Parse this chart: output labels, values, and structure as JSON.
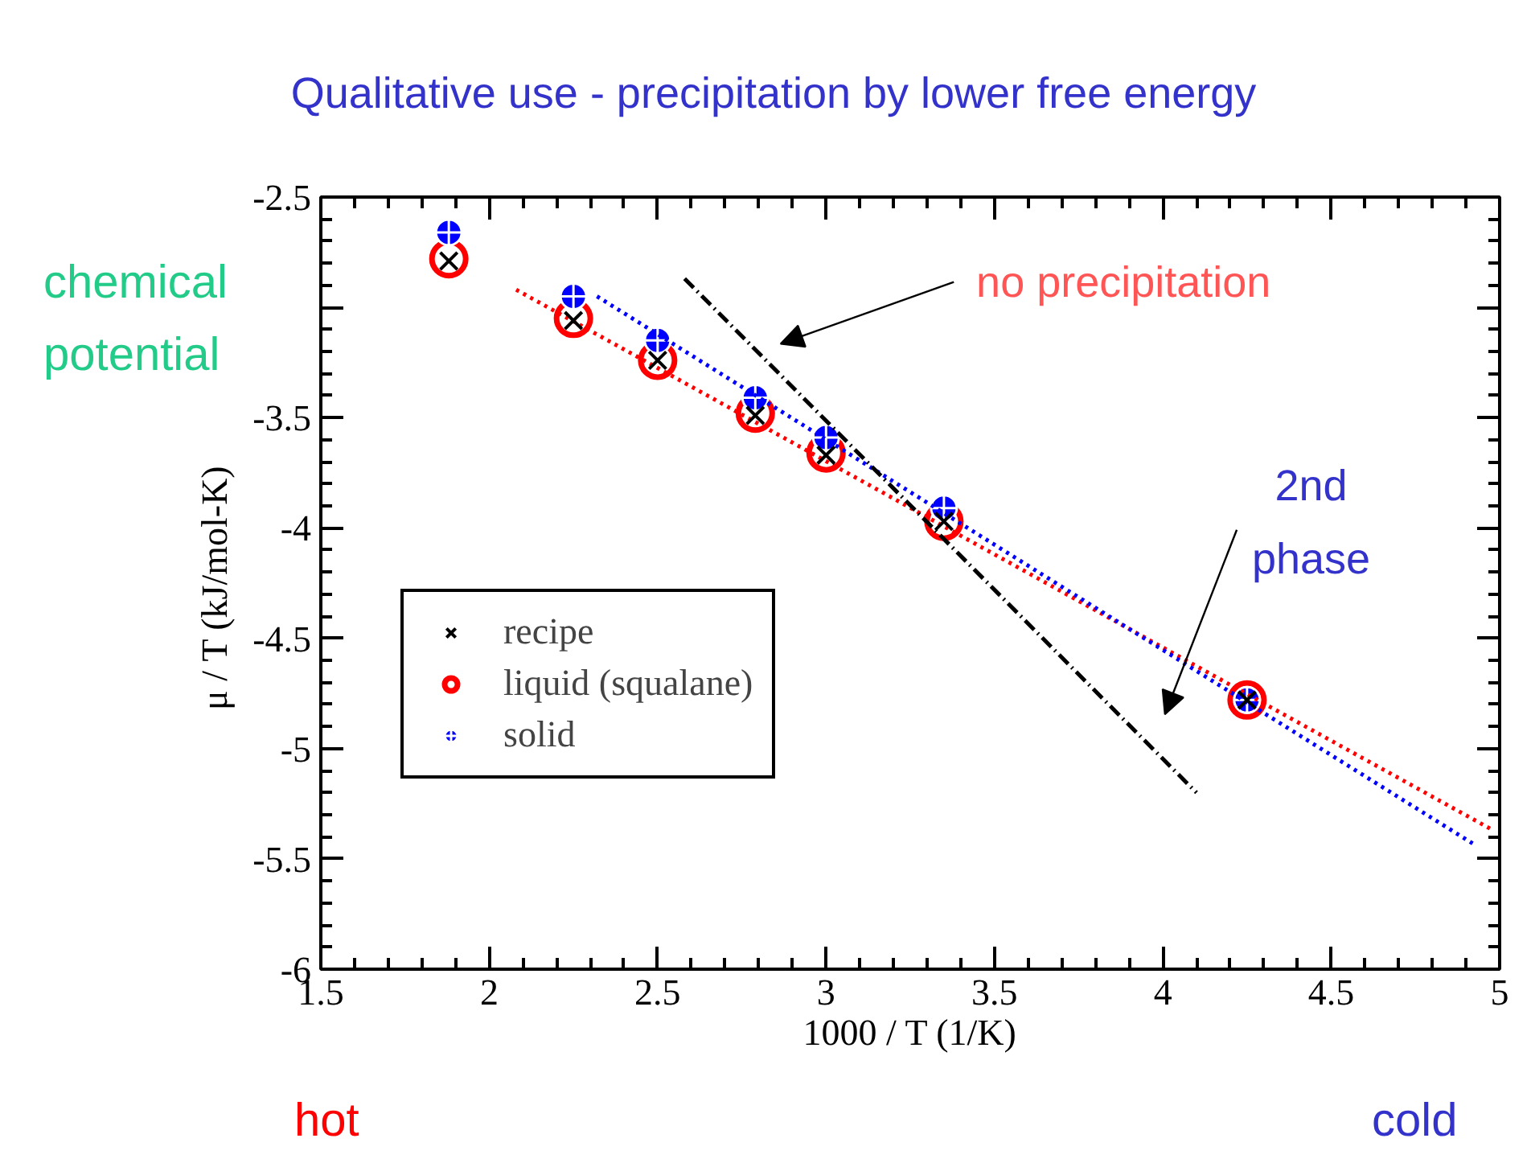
{
  "chart_data": {
    "type": "scatter",
    "title": "Qualitative use - precipitation by lower free energy",
    "xlabel": "1000 / T (1/K)",
    "ylabel": "μ / T  (kJ/mol-K)",
    "x": [
      1.88,
      2.25,
      2.5,
      2.79,
      3.0,
      3.35,
      4.25
    ],
    "series": [
      {
        "name": "recipe",
        "marker": "cross",
        "color": "#000000",
        "values": [
          -2.79,
          -3.06,
          -3.24,
          -3.49,
          -3.67,
          -3.97,
          -4.78
        ]
      },
      {
        "name": "liquid (squalane)",
        "marker": "circle",
        "color": "#ff0000",
        "values": [
          -2.78,
          -3.05,
          -3.24,
          -3.48,
          -3.66,
          -3.97,
          -4.78
        ]
      },
      {
        "name": "solid",
        "marker": "circle",
        "color": "#0000ff",
        "values": [
          -2.66,
          -2.95,
          -3.15,
          -3.41,
          -3.59,
          -3.91,
          -4.78
        ]
      },
      {
        "type": "line",
        "line_style": "dotted",
        "color": "#ff0000",
        "x": [
          2.08,
          4.98
        ],
        "values": [
          -2.92,
          -5.37
        ]
      },
      {
        "type": "line",
        "line_style": "dotted",
        "color": "#0000ff",
        "x": [
          2.32,
          4.93
        ],
        "values": [
          -2.95,
          -5.44
        ]
      },
      {
        "type": "line",
        "line_style": "dashed",
        "color": "#000000",
        "x": [
          2.58,
          4.1
        ],
        "values": [
          -2.87,
          -5.2
        ]
      }
    ],
    "xlim": [
      1.5,
      5
    ],
    "ylim": [
      -6,
      -2.5
    ],
    "xticks": [
      1.5,
      2,
      2.5,
      3,
      3.5,
      4,
      4.5,
      5
    ],
    "yticks": [
      -6,
      -5.5,
      -5,
      -4.5,
      -4,
      -3.5,
      {
        "value": -3,
        "label": null
      },
      -2.5
    ],
    "annotations": [
      "no precipitation",
      "2nd phase",
      "chemical potential",
      "hot",
      "cold"
    ],
    "legend": "bottom left",
    "grid": false
  }
}
